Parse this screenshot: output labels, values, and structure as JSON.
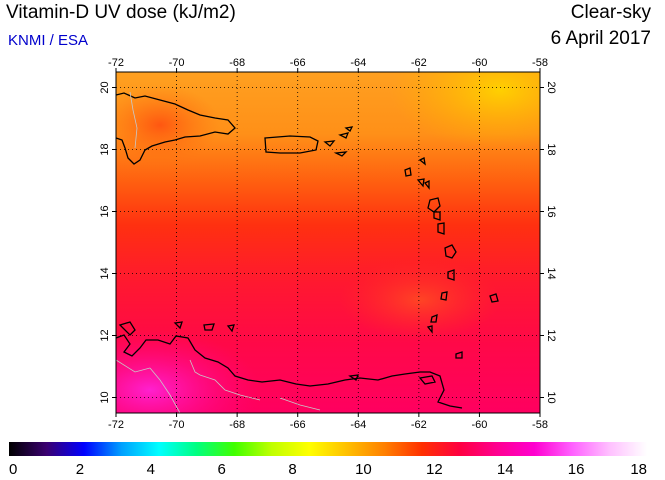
{
  "header": {
    "title": "Vitamin-D UV dose (kJ/m2)",
    "subtitle": "KNMI / ESA",
    "sky_condition": "Clear-sky",
    "date": "6 April 2017"
  },
  "map": {
    "lon_range": [
      -72,
      -58
    ],
    "lat_range": [
      9.5,
      20.5
    ],
    "lon_ticks": [
      "-72",
      "-70",
      "-68",
      "-66",
      "-64",
      "-62",
      "-60",
      "-58"
    ],
    "lat_ticks": [
      "10",
      "12",
      "14",
      "16",
      "18",
      "20"
    ],
    "grid": "dotted",
    "coastline_color": "#000000",
    "border_color": "#c8c8c8"
  },
  "colorbar": {
    "labels": [
      "0",
      "2",
      "4",
      "6",
      "8",
      "10",
      "12",
      "14",
      "16",
      "18"
    ],
    "range": [
      0,
      18
    ],
    "colors": [
      "#000000",
      "#3a0070",
      "#0000ff",
      "#00a0ff",
      "#00ffff",
      "#00ff80",
      "#40ff00",
      "#c0ff00",
      "#ffff00",
      "#ffc000",
      "#ff8000",
      "#ff3000",
      "#ff0040",
      "#ff0090",
      "#ff00d0",
      "#ff60ff",
      "#ffc0ff",
      "#ffffff"
    ]
  }
}
